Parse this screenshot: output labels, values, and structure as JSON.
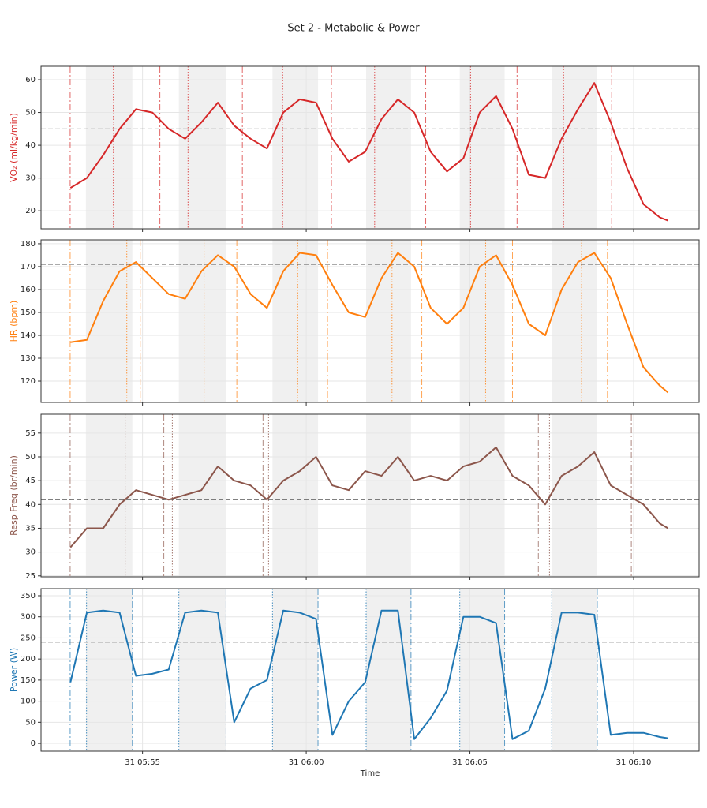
{
  "title": "Set 2 - Metabolic & Power",
  "chart_data": [
    {
      "type": "line",
      "ylabel": "VO₂ (ml/kg/min)",
      "label_color": "#d62728",
      "x": [
        352.8,
        353.3,
        353.8,
        354.3,
        354.8,
        355.3,
        355.8,
        356.3,
        356.8,
        357.3,
        357.8,
        358.3,
        358.8,
        359.3,
        359.8,
        360.3,
        360.8,
        361.3,
        361.8,
        362.3,
        362.8,
        363.3,
        363.8,
        364.3,
        364.8,
        365.3,
        365.8,
        366.3,
        366.8,
        367.3,
        367.8,
        368.3,
        368.8,
        369.3,
        369.8,
        370.3,
        370.8,
        371.05
      ],
      "series": [
        {
          "color": "#d62728",
          "values": [
            27,
            30,
            37,
            45,
            51,
            50,
            45,
            42,
            47,
            53,
            46,
            42,
            39,
            50,
            54,
            53,
            42,
            35,
            38,
            48,
            54,
            50,
            38,
            32,
            36,
            50,
            55,
            45,
            31,
            30,
            42,
            51,
            59,
            47,
            33,
            22,
            18,
            17
          ]
        }
      ],
      "xlim": [
        351.9,
        372.0
      ],
      "xticks": [
        {
          "value": 355,
          "label": "31 05:55"
        },
        {
          "value": 360,
          "label": "31 06:00"
        },
        {
          "value": 365,
          "label": "31 06:05"
        },
        {
          "value": 370,
          "label": "31 06:10"
        }
      ],
      "ylim": [
        14.5,
        64.1
      ],
      "yticks": [
        20,
        30,
        40,
        50,
        60
      ],
      "grid": true,
      "threshold": 45,
      "intervals": [
        [
          353.27,
          354.69
        ],
        [
          356.11,
          357.55
        ],
        [
          358.97,
          360.36
        ],
        [
          361.83,
          363.2
        ],
        [
          364.69,
          366.06
        ],
        [
          367.5,
          368.89
        ]
      ],
      "vlines_dashdot": [
        352.79,
        355.53,
        358.05,
        360.77,
        363.65,
        366.44,
        369.33
      ],
      "vlines_dotted": [
        354.11,
        356.39,
        359.28,
        362.09,
        365.02,
        367.86
      ]
    },
    {
      "type": "line",
      "ylabel": "HR (bpm)",
      "label_color": "#ff7f0e",
      "x": [
        352.8,
        353.3,
        353.8,
        354.3,
        354.8,
        355.3,
        355.8,
        356.3,
        356.8,
        357.3,
        357.8,
        358.3,
        358.8,
        359.3,
        359.8,
        360.3,
        360.8,
        361.3,
        361.8,
        362.3,
        362.8,
        363.3,
        363.8,
        364.3,
        364.8,
        365.3,
        365.8,
        366.3,
        366.8,
        367.3,
        367.8,
        368.3,
        368.8,
        369.3,
        369.8,
        370.3,
        370.8,
        371.05
      ],
      "series": [
        {
          "color": "#ff7f0e",
          "values": [
            137,
            138,
            155,
            168,
            172,
            165,
            158,
            156,
            168,
            175,
            170,
            158,
            152,
            168,
            176,
            175,
            162,
            150,
            148,
            165,
            176,
            170,
            152,
            145,
            152,
            170,
            175,
            162,
            145,
            140,
            160,
            172,
            176,
            165,
            145,
            126,
            118,
            115
          ]
        }
      ],
      "xlim": [
        351.9,
        372.0
      ],
      "xticks": [
        {
          "value": 355,
          "label": "31 05:55"
        },
        {
          "value": 360,
          "label": "31 06:00"
        },
        {
          "value": 365,
          "label": "31 06:05"
        },
        {
          "value": 370,
          "label": "31 06:10"
        }
      ],
      "ylim": [
        110.7,
        181.7
      ],
      "yticks": [
        120,
        130,
        140,
        150,
        160,
        170,
        180
      ],
      "grid": true,
      "threshold": 171,
      "intervals": [
        [
          353.27,
          354.69
        ],
        [
          356.11,
          357.55
        ],
        [
          358.97,
          360.36
        ],
        [
          361.83,
          363.2
        ],
        [
          364.69,
          366.06
        ],
        [
          367.5,
          368.89
        ]
      ],
      "vlines_dashdot": [
        352.79,
        354.93,
        357.88,
        360.65,
        363.53,
        366.3,
        369.2
      ],
      "vlines_dotted": [
        354.52,
        356.88,
        359.74,
        362.62,
        365.48,
        368.41
      ]
    },
    {
      "type": "line",
      "ylabel": "Resp Freq (br/min)",
      "label_color": "#8c564b",
      "x": [
        352.8,
        353.3,
        353.8,
        354.3,
        354.8,
        355.3,
        355.8,
        356.3,
        356.8,
        357.3,
        357.8,
        358.3,
        358.8,
        359.3,
        359.8,
        360.3,
        360.8,
        361.3,
        361.8,
        362.3,
        362.8,
        363.3,
        363.8,
        364.3,
        364.8,
        365.3,
        365.8,
        366.3,
        366.8,
        367.3,
        367.8,
        368.3,
        368.8,
        369.3,
        369.8,
        370.3,
        370.8,
        371.05
      ],
      "series": [
        {
          "color": "#8c564b",
          "values": [
            31,
            35,
            35,
            40,
            43,
            42,
            41,
            42,
            43,
            48,
            45,
            44,
            41,
            45,
            47,
            50,
            44,
            43,
            47,
            46,
            50,
            45,
            46,
            45,
            48,
            49,
            52,
            46,
            44,
            40,
            46,
            48,
            51,
            44,
            42,
            40,
            36,
            35
          ]
        }
      ],
      "xlim": [
        351.9,
        372.0
      ],
      "xticks": [
        {
          "value": 355,
          "label": "31 05:55"
        },
        {
          "value": 360,
          "label": "31 06:00"
        },
        {
          "value": 365,
          "label": "31 06:05"
        },
        {
          "value": 370,
          "label": "31 06:10"
        }
      ],
      "ylim": [
        24.8,
        58.95
      ],
      "yticks": [
        25,
        30,
        35,
        40,
        45,
        50,
        55
      ],
      "grid": true,
      "threshold": 41,
      "intervals": [
        [
          353.27,
          354.69
        ],
        [
          356.11,
          357.55
        ],
        [
          358.97,
          360.36
        ],
        [
          361.83,
          363.2
        ],
        [
          364.69,
          366.06
        ],
        [
          367.5,
          368.89
        ]
      ],
      "vlines_dashdot": [
        352.79,
        355.65,
        358.68,
        367.09,
        369.93
      ],
      "vlines_dotted": [
        354.47,
        355.91,
        358.85,
        367.43
      ]
    },
    {
      "type": "line",
      "ylabel": "Power (W)",
      "label_color": "#1f77b4",
      "xlabel": "Time",
      "x": [
        352.8,
        353.3,
        353.8,
        354.3,
        354.8,
        355.3,
        355.8,
        356.3,
        356.8,
        357.3,
        357.8,
        358.3,
        358.8,
        359.3,
        359.8,
        360.3,
        360.8,
        361.3,
        361.8,
        362.3,
        362.8,
        363.3,
        363.8,
        364.3,
        364.8,
        365.3,
        365.8,
        366.3,
        366.8,
        367.3,
        367.8,
        368.3,
        368.8,
        369.3,
        369.8,
        370.3,
        370.8,
        371.05
      ],
      "series": [
        {
          "color": "#1f77b4",
          "values": [
            145,
            310,
            315,
            310,
            160,
            165,
            175,
            310,
            315,
            310,
            50,
            130,
            150,
            315,
            310,
            295,
            20,
            100,
            145,
            315,
            315,
            10,
            60,
            125,
            300,
            300,
            285,
            10,
            30,
            130,
            310,
            310,
            305,
            20,
            25,
            25,
            15,
            12
          ]
        }
      ],
      "xlim": [
        351.9,
        372.0
      ],
      "xticks": [
        {
          "value": 355,
          "label": "31 05:55"
        },
        {
          "value": 360,
          "label": "31 06:00"
        },
        {
          "value": 365,
          "label": "31 06:05"
        },
        {
          "value": 370,
          "label": "31 06:10"
        }
      ],
      "ylim": [
        -18.6,
        366.8
      ],
      "yticks": [
        0,
        50,
        100,
        150,
        200,
        250,
        300,
        350
      ],
      "grid": true,
      "threshold": 240,
      "intervals": [
        [
          353.27,
          354.69
        ],
        [
          356.11,
          357.55
        ],
        [
          358.97,
          360.36
        ],
        [
          361.83,
          363.2
        ],
        [
          364.69,
          366.06
        ],
        [
          367.5,
          368.89
        ]
      ],
      "vlines_dashdot": [
        352.79,
        354.69,
        357.55,
        360.36,
        363.2,
        366.06,
        368.89
      ],
      "vlines_dotted": [
        353.29,
        356.11,
        358.97,
        361.83,
        364.69,
        367.5
      ]
    }
  ]
}
